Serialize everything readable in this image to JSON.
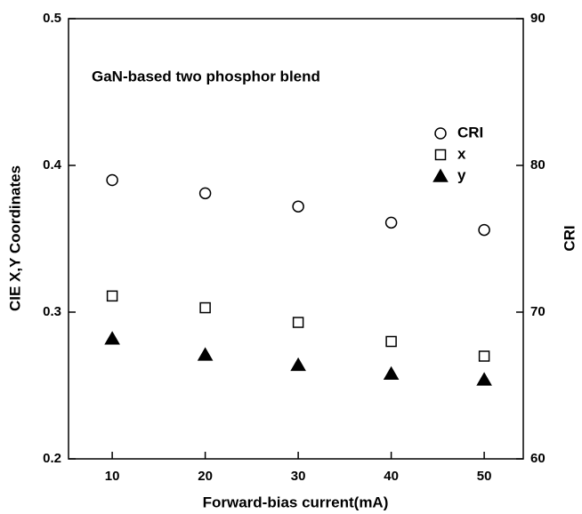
{
  "chart_data": {
    "type": "scatter",
    "annotation": "GaN-based two phosphor blend",
    "x_label": "Forward-bias current(mA)",
    "y_label": "CIE X,Y Coordinates",
    "y2_label": "CRI",
    "x": [
      10,
      20,
      30,
      40,
      50
    ],
    "xlim": [
      5.3,
      54.2
    ],
    "xticks": [
      10,
      20,
      30,
      40,
      50
    ],
    "ylim": [
      0.2,
      0.5
    ],
    "yticks": [
      0.2,
      0.3,
      0.4,
      0.5
    ],
    "y2lim": [
      60,
      90
    ],
    "y2ticks": [
      60,
      70,
      80,
      90
    ],
    "legend": "upper right",
    "series": [
      {
        "name": "CRI",
        "color": "#000000",
        "marker": "open-circle",
        "axis": "y2",
        "values": [
          79.0,
          78.1,
          77.2,
          76.1,
          75.6
        ]
      },
      {
        "name": "x",
        "color": "#000000",
        "marker": "open-square",
        "values": [
          0.311,
          0.303,
          0.293,
          0.28,
          0.27
        ]
      },
      {
        "name": "y",
        "color": "#000000",
        "marker": "filled-triangle",
        "values": [
          0.282,
          0.271,
          0.264,
          0.258,
          0.254
        ]
      }
    ]
  }
}
